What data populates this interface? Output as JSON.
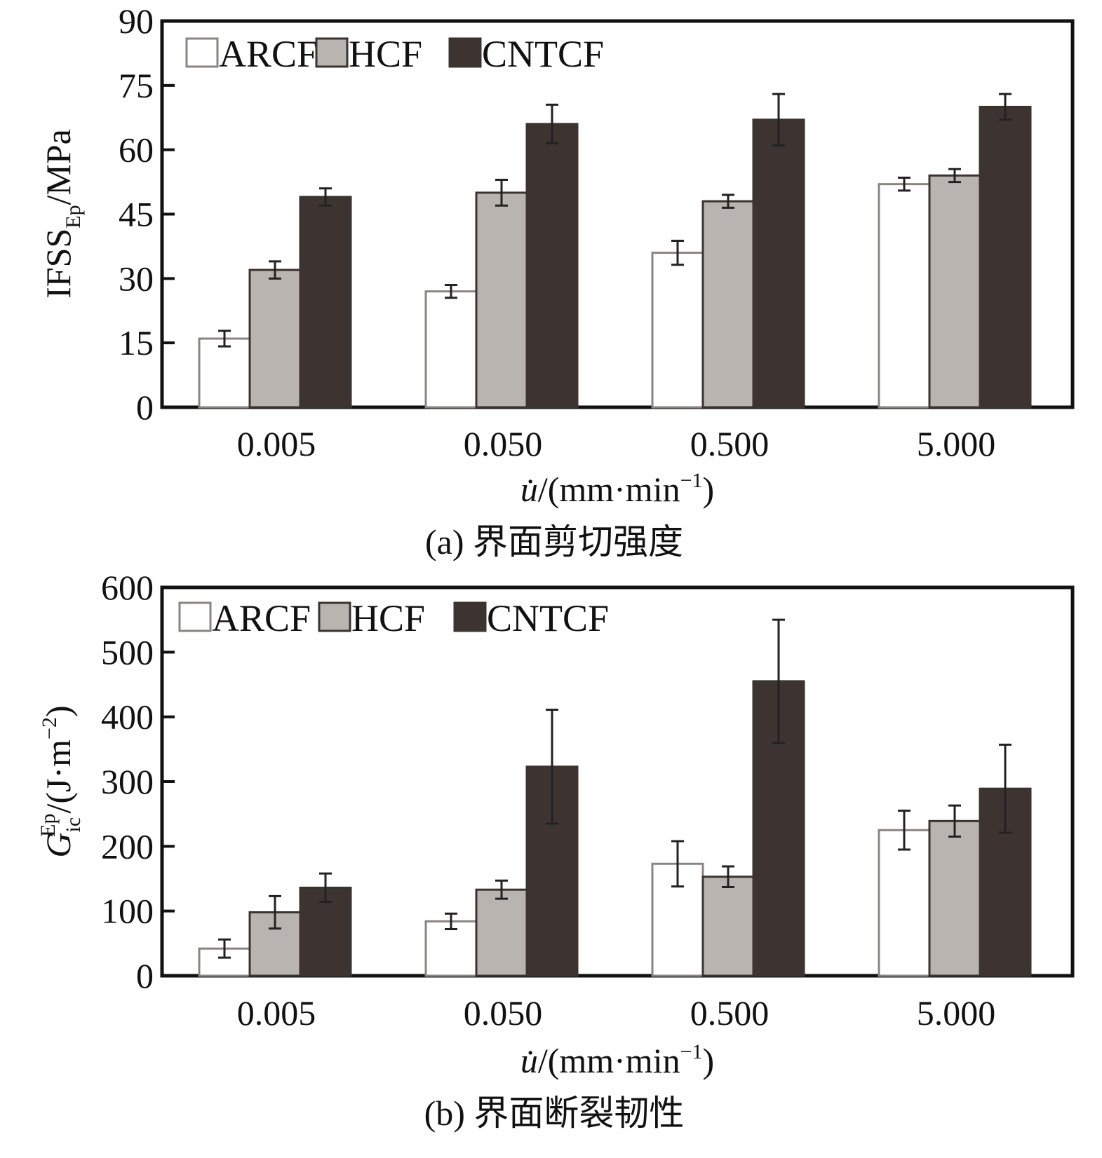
{
  "chart_data": [
    {
      "type": "bar",
      "caption": "(a) 界面剪切强度",
      "xlabel_var": "u̇",
      "xlabel_unit_pre": "/(mm·min",
      "xlabel_unit_sup": "−1",
      "xlabel_unit_post": ")",
      "ylabel_main": "IFSS",
      "ylabel_sub": "Ep",
      "ylabel_post": "/MPa",
      "categories": [
        "0.005",
        "0.050",
        "0.500",
        "5.000"
      ],
      "ylim": [
        0,
        90
      ],
      "yticks": [
        "0",
        "15",
        "30",
        "45",
        "60",
        "75",
        "90"
      ],
      "legend_position": "top-left",
      "series": [
        {
          "name": "ARCF",
          "color": "#ffffff",
          "values": [
            16,
            27,
            36,
            52
          ],
          "errors": [
            1.8,
            1.5,
            2.8,
            1.5
          ]
        },
        {
          "name": "HCF",
          "color": "#bab4b1",
          "values": [
            32,
            50,
            48,
            54
          ],
          "errors": [
            2.0,
            3.0,
            1.5,
            1.5
          ]
        },
        {
          "name": "CNTCF",
          "color": "#3d3431",
          "values": [
            49,
            66,
            67,
            70
          ],
          "errors": [
            2.0,
            4.5,
            6.0,
            3.0
          ]
        }
      ]
    },
    {
      "type": "bar",
      "caption": "(b) 界面断裂韧性",
      "xlabel_var": "u̇",
      "xlabel_unit_pre": "/(mm·min",
      "xlabel_unit_sup": "−1",
      "xlabel_unit_post": ")",
      "ylabel_main": "G",
      "ylabel_sub": "ic",
      "ylabel_sup": "Ep",
      "ylabel_post": "/(J·m",
      "ylabel_post_sup": "−2",
      "ylabel_close": ")",
      "categories": [
        "0.005",
        "0.050",
        "0.500",
        "5.000"
      ],
      "ylim": [
        0,
        600
      ],
      "yticks": [
        "0",
        "100",
        "200",
        "300",
        "400",
        "500",
        "600"
      ],
      "legend_position": "top-left",
      "series": [
        {
          "name": "ARCF",
          "color": "#ffffff",
          "values": [
            42,
            84,
            173,
            225
          ],
          "errors": [
            14,
            12,
            35,
            30
          ]
        },
        {
          "name": "HCF",
          "color": "#bab4b1",
          "values": [
            98,
            133,
            153,
            239
          ],
          "errors": [
            25,
            14,
            16,
            24
          ]
        },
        {
          "name": "CNTCF",
          "color": "#3d3431",
          "values": [
            136,
            323,
            455,
            289
          ],
          "errors": [
            22,
            88,
            95,
            68
          ]
        }
      ]
    }
  ]
}
